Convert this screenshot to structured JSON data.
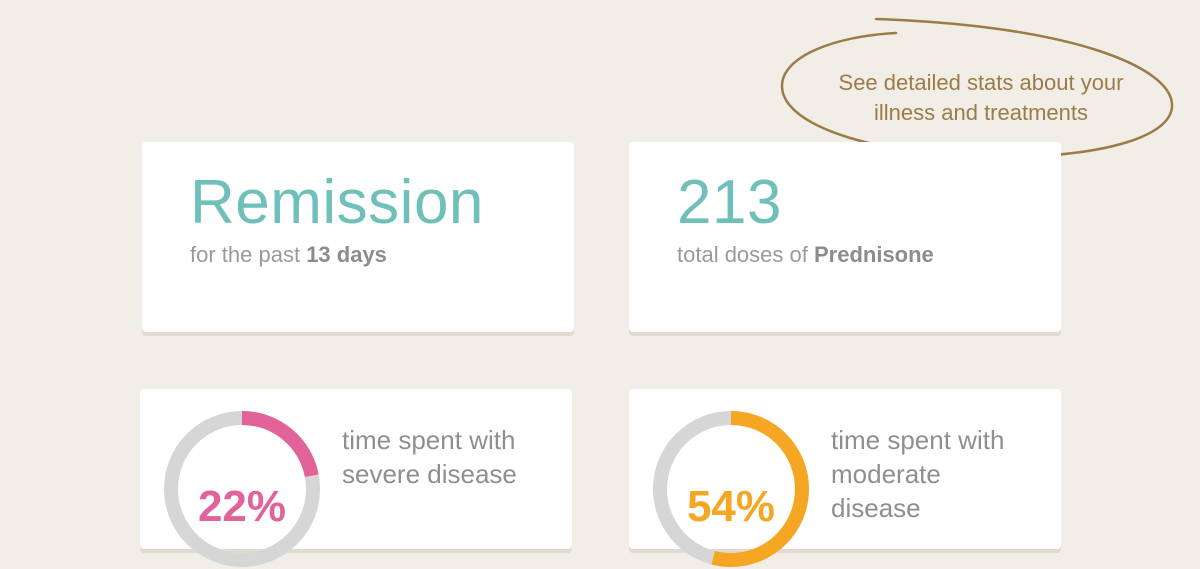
{
  "callout": {
    "line1": "See detailed stats about your",
    "line2": "illness and treatments"
  },
  "remission_card": {
    "value": "Remission",
    "prefix": "for the past ",
    "emphasis": "13 days"
  },
  "doses_card": {
    "value": "213",
    "prefix": "total doses of ",
    "emphasis": "Prednisone"
  },
  "severe_card": {
    "percent_label": "22%",
    "percent_value": 22,
    "desc_line1": "time spent with",
    "desc_line2": "severe disease",
    "accent_color": "#e2629a"
  },
  "moderate_card": {
    "percent_label": "54%",
    "percent_value": 54,
    "desc_line1": "time spent with",
    "desc_line2": "moderate",
    "desc_line3": "disease",
    "accent_color": "#f5a623"
  },
  "colors": {
    "background": "#f1eee8",
    "teal_accent": "#6fc0b8",
    "callout_gold": "#9b7c47",
    "ring_track": "#d6d6d6"
  }
}
